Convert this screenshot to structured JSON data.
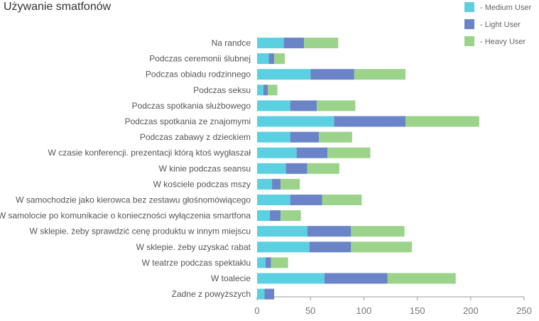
{
  "chart_data": {
    "type": "bar",
    "orientation": "horizontal",
    "stacked": true,
    "title": "Używanie smatfonów",
    "xlabel": "",
    "ylabel": "",
    "xlim": [
      0,
      250
    ],
    "xticks": [
      0,
      50,
      100,
      150,
      200,
      250
    ],
    "legend_position": "top-right",
    "categories": [
      "Na randce",
      "Podczas ceremonii ślubnej",
      "Podczas obiadu rodzinnego",
      "Podczas seksu",
      "Podczas spotkania służbowego",
      "Podczas spotkania ze znajomymi",
      "Podczas zabawy z dzieckiem",
      "W czasie konferencji. prezentacji którą ktoś wygłaszał",
      "W kinie podczas seansu",
      "W kościele podczas mszy",
      "W samochodzie jako kierowca bez zestawu głośnomówiącego",
      "W samolocie po komunikacie o konieczności wyłączenia smartfona",
      "W sklepie. żeby sprawdzić cenę produktu w innym miejscu",
      "W sklepie. żeby uzyskać rabat",
      "W teatrze podczas spektaklu",
      "W toalecie",
      "Żadne z powyższych"
    ],
    "series": [
      {
        "name": "Medium User",
        "color": "#5bd0e0",
        "values": [
          25,
          11,
          50,
          6,
          31,
          72,
          31,
          37,
          27,
          14,
          31,
          12,
          47,
          49,
          8,
          63,
          7
        ]
      },
      {
        "name": "Light User",
        "color": "#6b84c8",
        "values": [
          19,
          5,
          41,
          4,
          25,
          67,
          27,
          29,
          20,
          8,
          30,
          10,
          41,
          39,
          5,
          59,
          9
        ]
      },
      {
        "name": "Heavy User",
        "color": "#9bd38a",
        "values": [
          32,
          10,
          48,
          9,
          36,
          69,
          31,
          40,
          30,
          18,
          37,
          19,
          50,
          57,
          16,
          64,
          0
        ]
      }
    ],
    "legend_order": [
      "Medium User",
      "Light User",
      "Heavy User"
    ],
    "grid": false
  }
}
